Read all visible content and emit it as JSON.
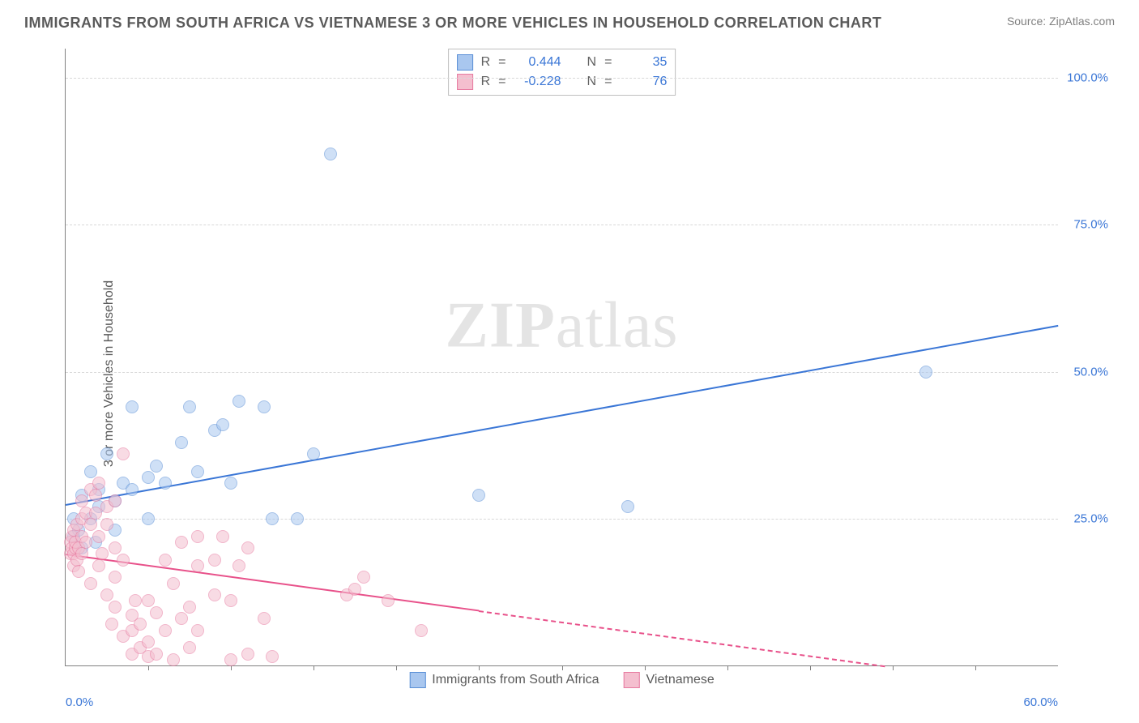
{
  "title": "IMMIGRANTS FROM SOUTH AFRICA VS VIETNAMESE 3 OR MORE VEHICLES IN HOUSEHOLD CORRELATION CHART",
  "source_label": "Source: ",
  "source_value": "ZipAtlas.com",
  "ylabel": "3 or more Vehicles in Household",
  "watermark_bold": "ZIP",
  "watermark_rest": "atlas",
  "chart": {
    "type": "scatter",
    "background_color": "#ffffff",
    "grid_color": "#d8d8d8",
    "axis_color": "#808080",
    "tick_color": "#3a76d6",
    "xlim": [
      0,
      60
    ],
    "ylim": [
      0,
      105
    ],
    "yticks": [
      {
        "v": 25,
        "label": "25.0%"
      },
      {
        "v": 50,
        "label": "50.0%"
      },
      {
        "v": 75,
        "label": "75.0%"
      },
      {
        "v": 100,
        "label": "100.0%"
      }
    ],
    "xticks_minor": [
      5,
      10,
      15,
      20,
      25,
      30,
      35,
      40,
      45,
      50,
      55
    ],
    "xtick_labels": [
      {
        "v": 0,
        "label": "0.0%",
        "align": "left"
      },
      {
        "v": 60,
        "label": "60.0%",
        "align": "right"
      }
    ],
    "marker_radius": 8,
    "marker_opacity": 0.55,
    "series": [
      {
        "name": "Immigrants from South Africa",
        "fill": "#a9c7ef",
        "stroke": "#5a8fd6",
        "R": "0.444",
        "N": "35",
        "trend": {
          "y0": 27.5,
          "y60": 58,
          "color": "#3a76d6",
          "dash_after_x": null
        },
        "points": [
          [
            0.5,
            22
          ],
          [
            0.5,
            25
          ],
          [
            0.8,
            23
          ],
          [
            1,
            29
          ],
          [
            1,
            20
          ],
          [
            1.5,
            33
          ],
          [
            1.5,
            25
          ],
          [
            1.8,
            21
          ],
          [
            2,
            30
          ],
          [
            2,
            27
          ],
          [
            2.5,
            36
          ],
          [
            3,
            28
          ],
          [
            3,
            23
          ],
          [
            3.5,
            31
          ],
          [
            4,
            30
          ],
          [
            4,
            44
          ],
          [
            5,
            32
          ],
          [
            5,
            25
          ],
          [
            5.5,
            34
          ],
          [
            6,
            31
          ],
          [
            7,
            38
          ],
          [
            7.5,
            44
          ],
          [
            8,
            33
          ],
          [
            9,
            40
          ],
          [
            9.5,
            41
          ],
          [
            10,
            31
          ],
          [
            10.5,
            45
          ],
          [
            12,
            44
          ],
          [
            12.5,
            25
          ],
          [
            14,
            25
          ],
          [
            15,
            36
          ],
          [
            16,
            87
          ],
          [
            25,
            29
          ],
          [
            34,
            27
          ],
          [
            52,
            50
          ]
        ]
      },
      {
        "name": "Vietnamese",
        "fill": "#f4bfcf",
        "stroke": "#e77aa0",
        "R": "-0.228",
        "N": "76",
        "trend": {
          "y0": 19,
          "y60": -4,
          "color": "#e8518a",
          "dash_after_x": 25
        },
        "points": [
          [
            0.3,
            19
          ],
          [
            0.3,
            21
          ],
          [
            0.4,
            20
          ],
          [
            0.4,
            22
          ],
          [
            0.5,
            17
          ],
          [
            0.5,
            23
          ],
          [
            0.5,
            19
          ],
          [
            0.6,
            20
          ],
          [
            0.6,
            21
          ],
          [
            0.7,
            18
          ],
          [
            0.7,
            24
          ],
          [
            0.8,
            20
          ],
          [
            0.8,
            16
          ],
          [
            1,
            22
          ],
          [
            1,
            25
          ],
          [
            1,
            19
          ],
          [
            1,
            28
          ],
          [
            1.2,
            26
          ],
          [
            1.2,
            21
          ],
          [
            1.5,
            30
          ],
          [
            1.5,
            24
          ],
          [
            1.5,
            14
          ],
          [
            1.8,
            26
          ],
          [
            1.8,
            29
          ],
          [
            2,
            22
          ],
          [
            2,
            17
          ],
          [
            2,
            31
          ],
          [
            2.2,
            19
          ],
          [
            2.5,
            24
          ],
          [
            2.5,
            12
          ],
          [
            2.5,
            27
          ],
          [
            2.8,
            7
          ],
          [
            3,
            10
          ],
          [
            3,
            20
          ],
          [
            3,
            15
          ],
          [
            3,
            28
          ],
          [
            3.5,
            5
          ],
          [
            3.5,
            18
          ],
          [
            3.5,
            36
          ],
          [
            4,
            8.5
          ],
          [
            4,
            2
          ],
          [
            4,
            6
          ],
          [
            4.2,
            11
          ],
          [
            4.5,
            3
          ],
          [
            4.5,
            7
          ],
          [
            5,
            1.5
          ],
          [
            5,
            11
          ],
          [
            5,
            4
          ],
          [
            5.5,
            9
          ],
          [
            5.5,
            2
          ],
          [
            6,
            6
          ],
          [
            6,
            18
          ],
          [
            6.5,
            14
          ],
          [
            6.5,
            1
          ],
          [
            7,
            8
          ],
          [
            7,
            21
          ],
          [
            7.5,
            3
          ],
          [
            7.5,
            10
          ],
          [
            8,
            17
          ],
          [
            8,
            22
          ],
          [
            8,
            6
          ],
          [
            9,
            12
          ],
          [
            9,
            18
          ],
          [
            9.5,
            22
          ],
          [
            10,
            11
          ],
          [
            10,
            1
          ],
          [
            10.5,
            17
          ],
          [
            11,
            20
          ],
          [
            11,
            2
          ],
          [
            12,
            8
          ],
          [
            12.5,
            1.5
          ],
          [
            17,
            12
          ],
          [
            17.5,
            13
          ],
          [
            18,
            15
          ],
          [
            19.5,
            11
          ],
          [
            21.5,
            6
          ]
        ]
      }
    ],
    "corr_labels": {
      "R": "R",
      "eq": "=",
      "N": "N"
    }
  }
}
